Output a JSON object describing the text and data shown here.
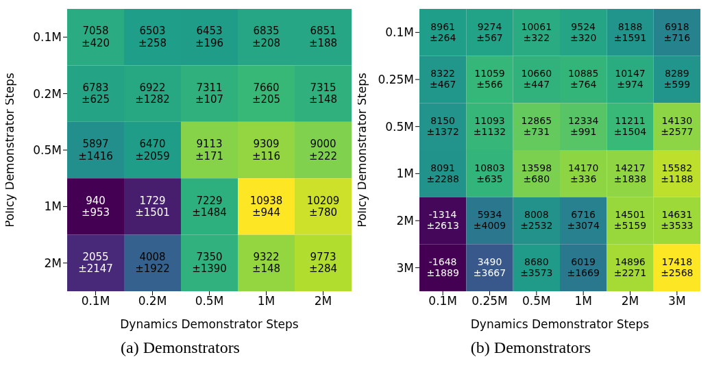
{
  "chart_data": [
    {
      "type": "heatmap",
      "title": "(a) Demonstrators",
      "xlabel": "Dynamics Demonstrator Steps",
      "ylabel": "Policy Demonstrator Steps",
      "categories": [
        "0.1M",
        "0.2M",
        "0.5M",
        "1M",
        "2M"
      ],
      "y_categories": [
        "0.1M",
        "0.2M",
        "0.5M",
        "1M",
        "2M"
      ],
      "cells": [
        [
          7058,
          6503,
          6453,
          6835,
          6851
        ],
        [
          6783,
          6922,
          7311,
          7660,
          7315
        ],
        [
          5897,
          6470,
          9113,
          9309,
          9000
        ],
        [
          940,
          1729,
          7229,
          10938,
          10209
        ],
        [
          2055,
          4008,
          7350,
          9322,
          9773
        ]
      ],
      "data_labels": true,
      "annotations": [
        "±420",
        "±258",
        "±196",
        "±208",
        "±188",
        "±625",
        "±1282",
        "±107",
        "±205",
        "±148",
        "±1416",
        "±2059",
        "±171",
        "±116",
        "±222",
        "±953",
        "±1501",
        "±1484",
        "±944",
        "±780",
        "±2147",
        "±1922",
        "±1390",
        "±148",
        "±284"
      ]
    },
    {
      "type": "heatmap",
      "title": "(b) Demonstrators",
      "xlabel": "Dynamics Demonstrator Steps",
      "ylabel": "Policy Demonstrator Steps",
      "categories": [
        "0.1M",
        "0.25M",
        "0.5M",
        "1M",
        "2M",
        "3M"
      ],
      "y_categories": [
        "0.1M",
        "0.25M",
        "0.5M",
        "1M",
        "2M",
        "3M"
      ],
      "cells": [
        [
          8961,
          9274,
          10061,
          9524,
          8188,
          6918
        ],
        [
          8322,
          11059,
          10660,
          10885,
          10147,
          8289
        ],
        [
          8150,
          11093,
          12865,
          12334,
          11211,
          14130
        ],
        [
          8091,
          10803,
          13598,
          14170,
          14217,
          15582
        ],
        [
          -1314,
          5934,
          8008,
          6716,
          14501,
          14631
        ],
        [
          -1648,
          3490,
          8680,
          6019,
          14896,
          17418
        ]
      ],
      "data_labels": true,
      "annotations": [
        "±264",
        "±567",
        "±322",
        "±320",
        "±1591",
        "±716",
        "±467",
        "±566",
        "±447",
        "±764",
        "±974",
        "±599",
        "±1372",
        "±1132",
        "±731",
        "±991",
        "±1504",
        "±2577",
        "±2288",
        "±635",
        "±680",
        "±336",
        "±1838",
        "±1188",
        "±2613",
        "±4009",
        "±2532",
        "±3074",
        "±5159",
        "±3533",
        "±1889",
        "±3667",
        "±3573",
        "±1669",
        "±2271",
        "±2568"
      ]
    }
  ]
}
